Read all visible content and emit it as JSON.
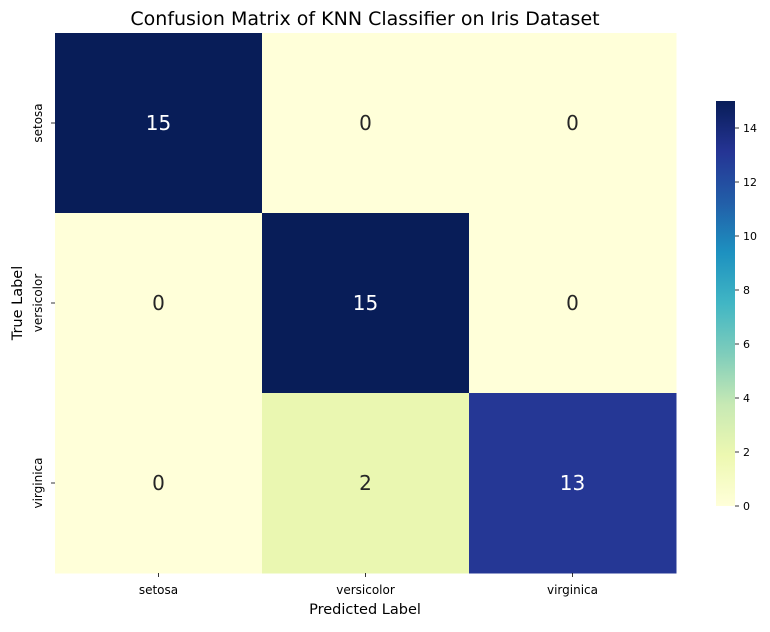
{
  "chart_data": {
    "type": "heatmap",
    "title": "Confusion Matrix of KNN Classifier on Iris Dataset",
    "xlabel": "Predicted Label",
    "ylabel": "True Label",
    "x_categories": [
      "setosa",
      "versicolor",
      "virginica"
    ],
    "y_categories": [
      "setosa",
      "versicolor",
      "virginica"
    ],
    "values": [
      [
        15,
        0,
        0
      ],
      [
        0,
        15,
        0
      ],
      [
        0,
        2,
        13
      ]
    ],
    "colormap": "YlGnBu",
    "colorbar": {
      "range": [
        0,
        15
      ],
      "ticks": [
        0,
        2,
        4,
        6,
        8,
        10,
        12,
        14
      ],
      "tick_labels": [
        "0",
        "2",
        "4",
        "6",
        "8",
        "10",
        "12",
        "14"
      ]
    },
    "annotations": true
  }
}
